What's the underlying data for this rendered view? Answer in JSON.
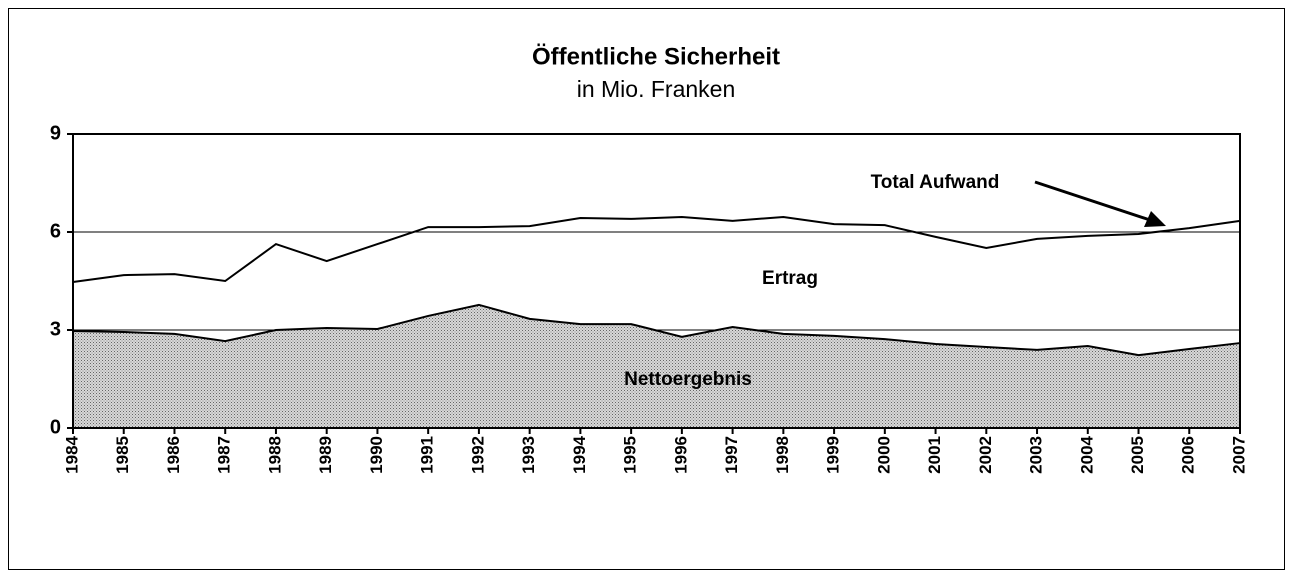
{
  "chart_data": {
    "type": "area-line",
    "title": "Öffentliche Sicherheit",
    "subtitle": "in Mio. Franken",
    "annotations": [
      "Ertrag"
    ],
    "categories": [
      "1984",
      "1985",
      "1986",
      "1987",
      "1988",
      "1989",
      "1990",
      "1991",
      "1992",
      "1993",
      "1994",
      "1995",
      "1996",
      "1997",
      "1998",
      "1999",
      "2000",
      "2001",
      "2002",
      "2003",
      "2004",
      "2005",
      "2006",
      "2007"
    ],
    "series": [
      {
        "name": "Total Aufwand",
        "color": "#000000",
        "kind": "line",
        "values": [
          4.47,
          4.68,
          4.71,
          4.5,
          5.63,
          5.11,
          5.63,
          6.15,
          6.15,
          6.18,
          6.43,
          6.4,
          6.46,
          6.34,
          6.46,
          6.24,
          6.21,
          5.85,
          5.51,
          5.79,
          5.88,
          5.94,
          6.12,
          6.34
        ]
      },
      {
        "name": "Nettoergebnis",
        "color": "#a8a8a8",
        "kind": "area",
        "values": [
          2.97,
          2.94,
          2.88,
          2.66,
          3.0,
          3.06,
          3.03,
          3.43,
          3.77,
          3.34,
          3.18,
          3.18,
          2.79,
          3.09,
          2.88,
          2.82,
          2.72,
          2.57,
          2.48,
          2.39,
          2.51,
          2.23,
          2.42,
          2.6
        ]
      }
    ],
    "ylim": [
      0,
      9
    ],
    "yticks": [
      0,
      3,
      6,
      9
    ],
    "grid": true
  }
}
